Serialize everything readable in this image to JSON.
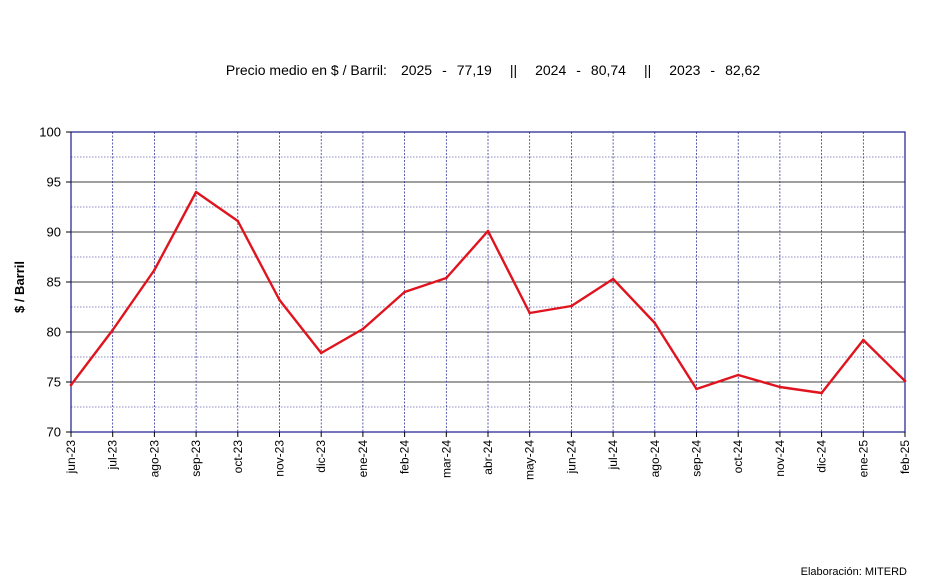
{
  "subtitle": {
    "lead": "Precio medio en $ / Barril:",
    "items": [
      {
        "year": "2025",
        "sep": "-",
        "value": "77,19"
      },
      {
        "year": "2024",
        "sep": "-",
        "value": "80,74"
      },
      {
        "year": "2023",
        "sep": "-",
        "value": "82,62"
      }
    ],
    "divider": "||"
  },
  "credit": "Elaboración: MITERD",
  "colors": {
    "line": "#e0141e",
    "grid": "#1a1a8c",
    "axis": "#000000"
  },
  "chart_data": {
    "type": "line",
    "title": "",
    "xlabel": "",
    "ylabel": "$ / Barril",
    "ylim": [
      70,
      100
    ],
    "yticks": [
      "70",
      "75",
      "80",
      "85",
      "90",
      "95",
      "100"
    ],
    "grid": true,
    "legend": "none",
    "categories": [
      "jun-23",
      "jul-23",
      "ago-23",
      "sep-23",
      "oct-23",
      "nov-23",
      "dic-23",
      "ene-24",
      "feb-24",
      "mar-24",
      "abr-24",
      "may-24",
      "jun-24",
      "jul-24",
      "ago-24",
      "sep-24",
      "oct-24",
      "nov-24",
      "dic-24",
      "ene-25",
      "feb-25"
    ],
    "series": [
      {
        "values": [
          74.7,
          80.2,
          86.2,
          94.0,
          91.1,
          83.2,
          77.9,
          80.3,
          84.0,
          85.4,
          90.1,
          81.9,
          82.6,
          85.3,
          80.9,
          74.3,
          75.7,
          74.5,
          73.9,
          79.2,
          75.1
        ]
      }
    ]
  }
}
